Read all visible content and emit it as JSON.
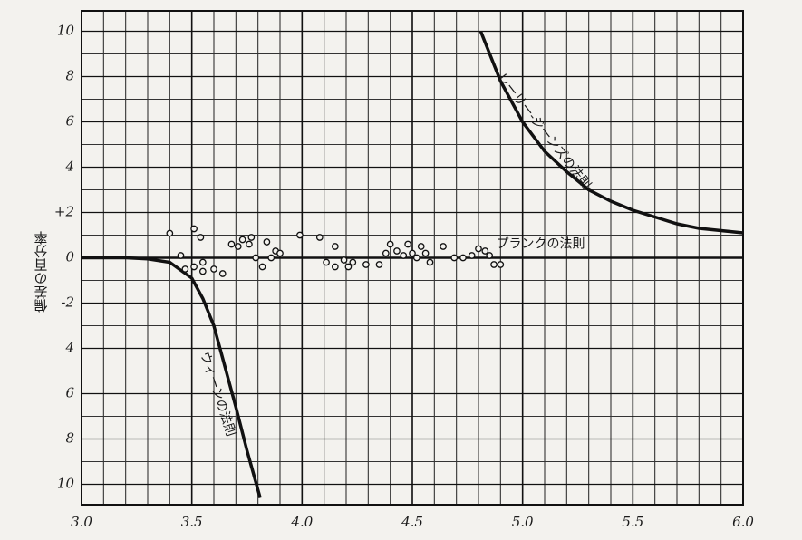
{
  "chart_data": {
    "type": "line",
    "y_label": "偏差の百分率",
    "annotation": "プランクの法則",
    "xlim": [
      3.0,
      6.0
    ],
    "ylim": [
      -10.9,
      10.9
    ],
    "xticks": [
      {
        "value": 3.0,
        "label": "3.0"
      },
      {
        "value": 3.5,
        "label": "3.5"
      },
      {
        "value": 4.0,
        "label": "4.0"
      },
      {
        "value": 4.5,
        "label": "4.5"
      },
      {
        "value": 5.0,
        "label": "5.0"
      },
      {
        "value": 5.5,
        "label": "5.5"
      },
      {
        "value": 6.0,
        "label": "6.0"
      }
    ],
    "yticks": [
      {
        "value": 10,
        "label": "10"
      },
      {
        "value": 8,
        "label": "8"
      },
      {
        "value": 6,
        "label": "6"
      },
      {
        "value": 4,
        "label": "4"
      },
      {
        "value": 2,
        "label": "+2"
      },
      0,
      -2,
      {
        "value": -4,
        "label": "4"
      },
      {
        "value": -6,
        "label": "6"
      },
      {
        "value": -8,
        "label": "8"
      },
      {
        "value": -10,
        "label": "10"
      }
    ],
    "grid": true,
    "grid_step": {
      "x": 0.1,
      "y": 1
    },
    "series": [
      {
        "name": "レーリー-ジーンズの法則",
        "kind": "line",
        "color": "#111111",
        "x": [
          4.81,
          4.9,
          5.0,
          5.1,
          5.2,
          5.3,
          5.4,
          5.5,
          5.6,
          5.7,
          5.8,
          5.9,
          6.0
        ],
        "values": [
          10,
          7.8,
          6.0,
          4.7,
          3.8,
          3.0,
          2.5,
          2.1,
          1.8,
          1.5,
          1.3,
          1.2,
          1.1
        ]
      },
      {
        "name": "ウィーンの法則",
        "kind": "line",
        "color": "#111111",
        "x": [
          3.0,
          3.1,
          3.2,
          3.3,
          3.4,
          3.5,
          3.55,
          3.6,
          3.65,
          3.7,
          3.75,
          3.81
        ],
        "values": [
          0,
          0,
          0,
          -0.05,
          -0.2,
          -0.9,
          -1.8,
          -3.0,
          -4.8,
          -6.6,
          -8.5,
          -10.6
        ]
      },
      {
        "kind": "scatter",
        "color": "#111111",
        "x": [
          3.4,
          3.51,
          3.45,
          3.54,
          3.47,
          3.51,
          3.55,
          3.55,
          3.6,
          3.64,
          3.68,
          3.71,
          3.73,
          3.76,
          3.77,
          3.79,
          3.82,
          3.84,
          3.86,
          3.88,
          3.9,
          3.99,
          4.08,
          4.11,
          4.15,
          4.15,
          4.19,
          4.21,
          4.23,
          4.29,
          4.35,
          4.38,
          4.4,
          4.43,
          4.46,
          4.48,
          4.5,
          4.52,
          4.54,
          4.56,
          4.58,
          4.64,
          4.69,
          4.73,
          4.77,
          4.8,
          4.83,
          4.85,
          4.87,
          4.9
        ],
        "values": [
          1.08,
          1.28,
          0.1,
          0.9,
          -0.5,
          -0.4,
          -0.2,
          -0.6,
          -0.5,
          -0.7,
          0.6,
          0.5,
          0.8,
          0.6,
          0.9,
          0,
          -0.4,
          0.7,
          0,
          0.3,
          0.2,
          1.0,
          0.9,
          -0.2,
          -0.4,
          0.5,
          -0.1,
          -0.4,
          -0.2,
          -0.3,
          -0.3,
          0.2,
          0.6,
          0.3,
          0.1,
          0.6,
          0.2,
          0,
          0.5,
          0.2,
          -0.2,
          0.5,
          0,
          0,
          0.1,
          0.4,
          0.3,
          0.1,
          -0.3,
          -0.3
        ]
      }
    ]
  }
}
